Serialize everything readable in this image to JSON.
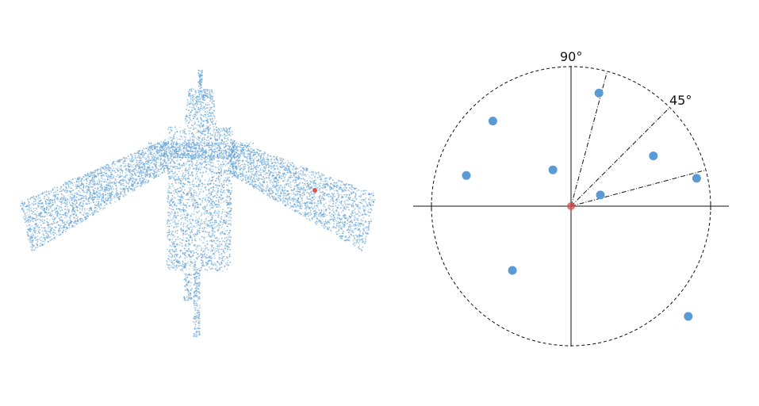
{
  "left_panel": {
    "description_name": "garment-point-cloud",
    "point_color": "#5f9fd2",
    "highlight_color": "#d9534f"
  },
  "right_panel": {
    "labels": {
      "top": "90°",
      "diag": "45°"
    },
    "points": [
      {
        "x": 0.2,
        "y": 0.81
      },
      {
        "x": -0.56,
        "y": 0.61
      },
      {
        "x": -0.75,
        "y": 0.22
      },
      {
        "x": -0.13,
        "y": 0.26
      },
      {
        "x": 0.59,
        "y": 0.36
      },
      {
        "x": 0.9,
        "y": 0.2
      },
      {
        "x": 0.21,
        "y": 0.08
      },
      {
        "x": -0.42,
        "y": -0.46
      },
      {
        "x": 0.84,
        "y": -0.79
      }
    ],
    "origin_color": "#d9534f",
    "point_color": "#5b9bd5",
    "ray_angles_deg": [
      15,
      45,
      75
    ]
  }
}
